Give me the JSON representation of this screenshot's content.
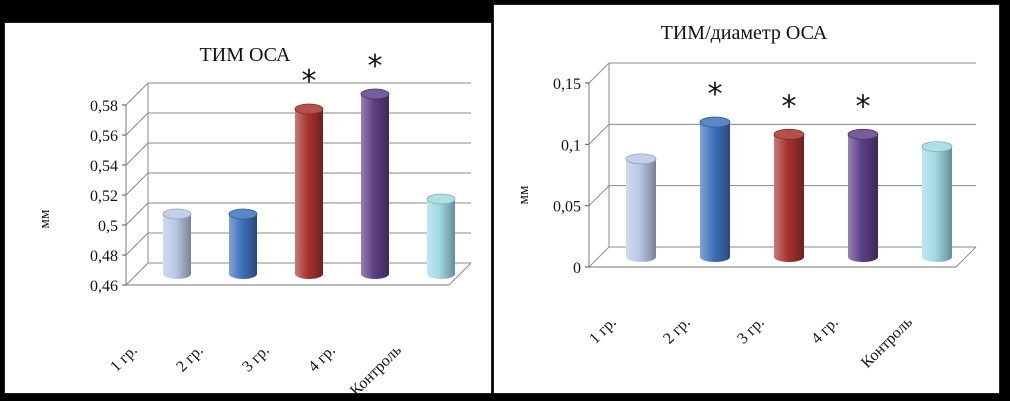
{
  "chart_data": [
    {
      "type": "bar",
      "title": "ТИМ ОСА",
      "ylabel": "мм",
      "xlabel": "",
      "categories": [
        "1 гр.",
        "2 гр.",
        "3 гр.",
        "4 гр.",
        "Контроль"
      ],
      "values": [
        0.5,
        0.5,
        0.57,
        0.58,
        0.51
      ],
      "significance": [
        "",
        "",
        "*",
        "*",
        ""
      ],
      "ylim": [
        0.46,
        0.58
      ],
      "yticks": [
        "0,46",
        "0,48",
        "0,5",
        "0,52",
        "0,54",
        "0,56",
        "0,58"
      ],
      "grid": true,
      "colors": [
        "#b8c8e4",
        "#3d72bb",
        "#a8322e",
        "#5e3f86",
        "#9fd9e3"
      ]
    },
    {
      "type": "bar",
      "title": "ТИМ/диаметр ОСА",
      "ylabel": "мм",
      "xlabel": "",
      "categories": [
        "1 гр.",
        "2 гр.",
        "3 гр.",
        "4 гр.",
        "Контроль"
      ],
      "values": [
        0.08,
        0.11,
        0.1,
        0.1,
        0.09
      ],
      "significance": [
        "",
        "*",
        "*",
        "*",
        ""
      ],
      "ylim": [
        0,
        0.15
      ],
      "yticks": [
        "0",
        "0,05",
        "0,1",
        "0,15"
      ],
      "grid": true,
      "colors": [
        "#b8c8e4",
        "#3d72bb",
        "#a8322e",
        "#5e3f86",
        "#9fd9e3"
      ]
    }
  ]
}
